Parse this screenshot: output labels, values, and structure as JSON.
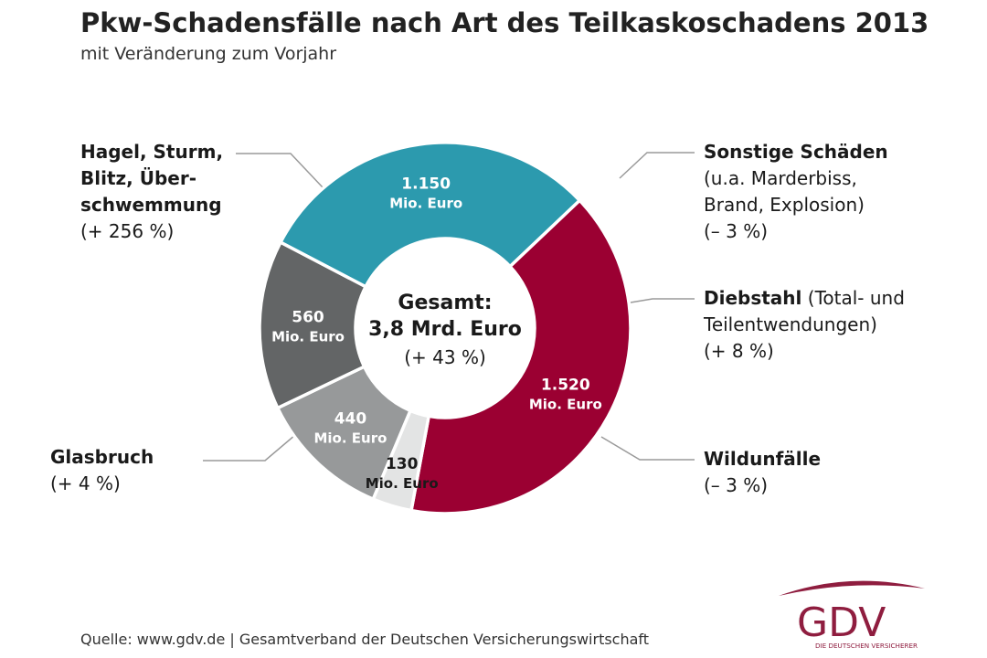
{
  "header": {
    "title": "Pkw-Schadensfälle nach Art des Teilkaskoschadens 2013",
    "subtitle": "mit Veränderung zum Vorjahr"
  },
  "center": {
    "line1": "Gesamt:",
    "line2": "3,8 Mrd. Euro",
    "line3": "(+ 43 %)"
  },
  "chart_data": {
    "type": "pie",
    "donut": true,
    "unit": "Mio. Euro",
    "slices": [
      {
        "label": "Hagel, Sturm, Blitz, Überschwemmung",
        "value": 1520,
        "value_label": "1.520",
        "change": "(+ 256 %)",
        "color": "#9b0032"
      },
      {
        "label": "Sonstige Schäden (u.a. Marderbiss, Brand, Explosion)",
        "value": 130,
        "value_label": "130",
        "change": "(– 3 %)",
        "color": "#e3e4e4"
      },
      {
        "label": "Diebstahl (Total- und Teilentwendungen)",
        "value": 440,
        "value_label": "440",
        "change": "(+ 8 %)",
        "color": "#97999a"
      },
      {
        "label": "Wildunfälle",
        "value": 560,
        "value_label": "560",
        "change": "(– 3 %)",
        "color": "#636566"
      },
      {
        "label": "Glasbruch",
        "value": 1150,
        "value_label": "1.150",
        "change": "(+ 4 %)",
        "color": "#2c9aae"
      }
    ]
  },
  "labels": {
    "hagel": {
      "l1": "Hagel, Sturm,",
      "l2": "Blitz, Über-",
      "l3": "schwemmung",
      "change": "(+ 256 %)"
    },
    "sonstige": {
      "l1": "Sonstige Schäden",
      "l2": "(u.a. Marderbiss,",
      "l3": "Brand, Explosion)",
      "change": "(– 3 %)"
    },
    "diebstahl": {
      "bold": "Diebstahl",
      "rest": " (Total- und",
      "l2": "Teilentwendungen)",
      "change": "(+ 8 %)"
    },
    "wild": {
      "l1": "Wildunfälle",
      "change": "(– 3 %)"
    },
    "glas": {
      "l1": "Glasbruch",
      "change": "(+ 4 %)"
    }
  },
  "footer": {
    "source": "Quelle: www.gdv.de | Gesamtverband der Deutschen Versicherungswirtschaft"
  },
  "logo": {
    "text": "GDV",
    "tagline": "DIE DEUTSCHEN VERSICHERER",
    "color": "#8f1d3f"
  }
}
